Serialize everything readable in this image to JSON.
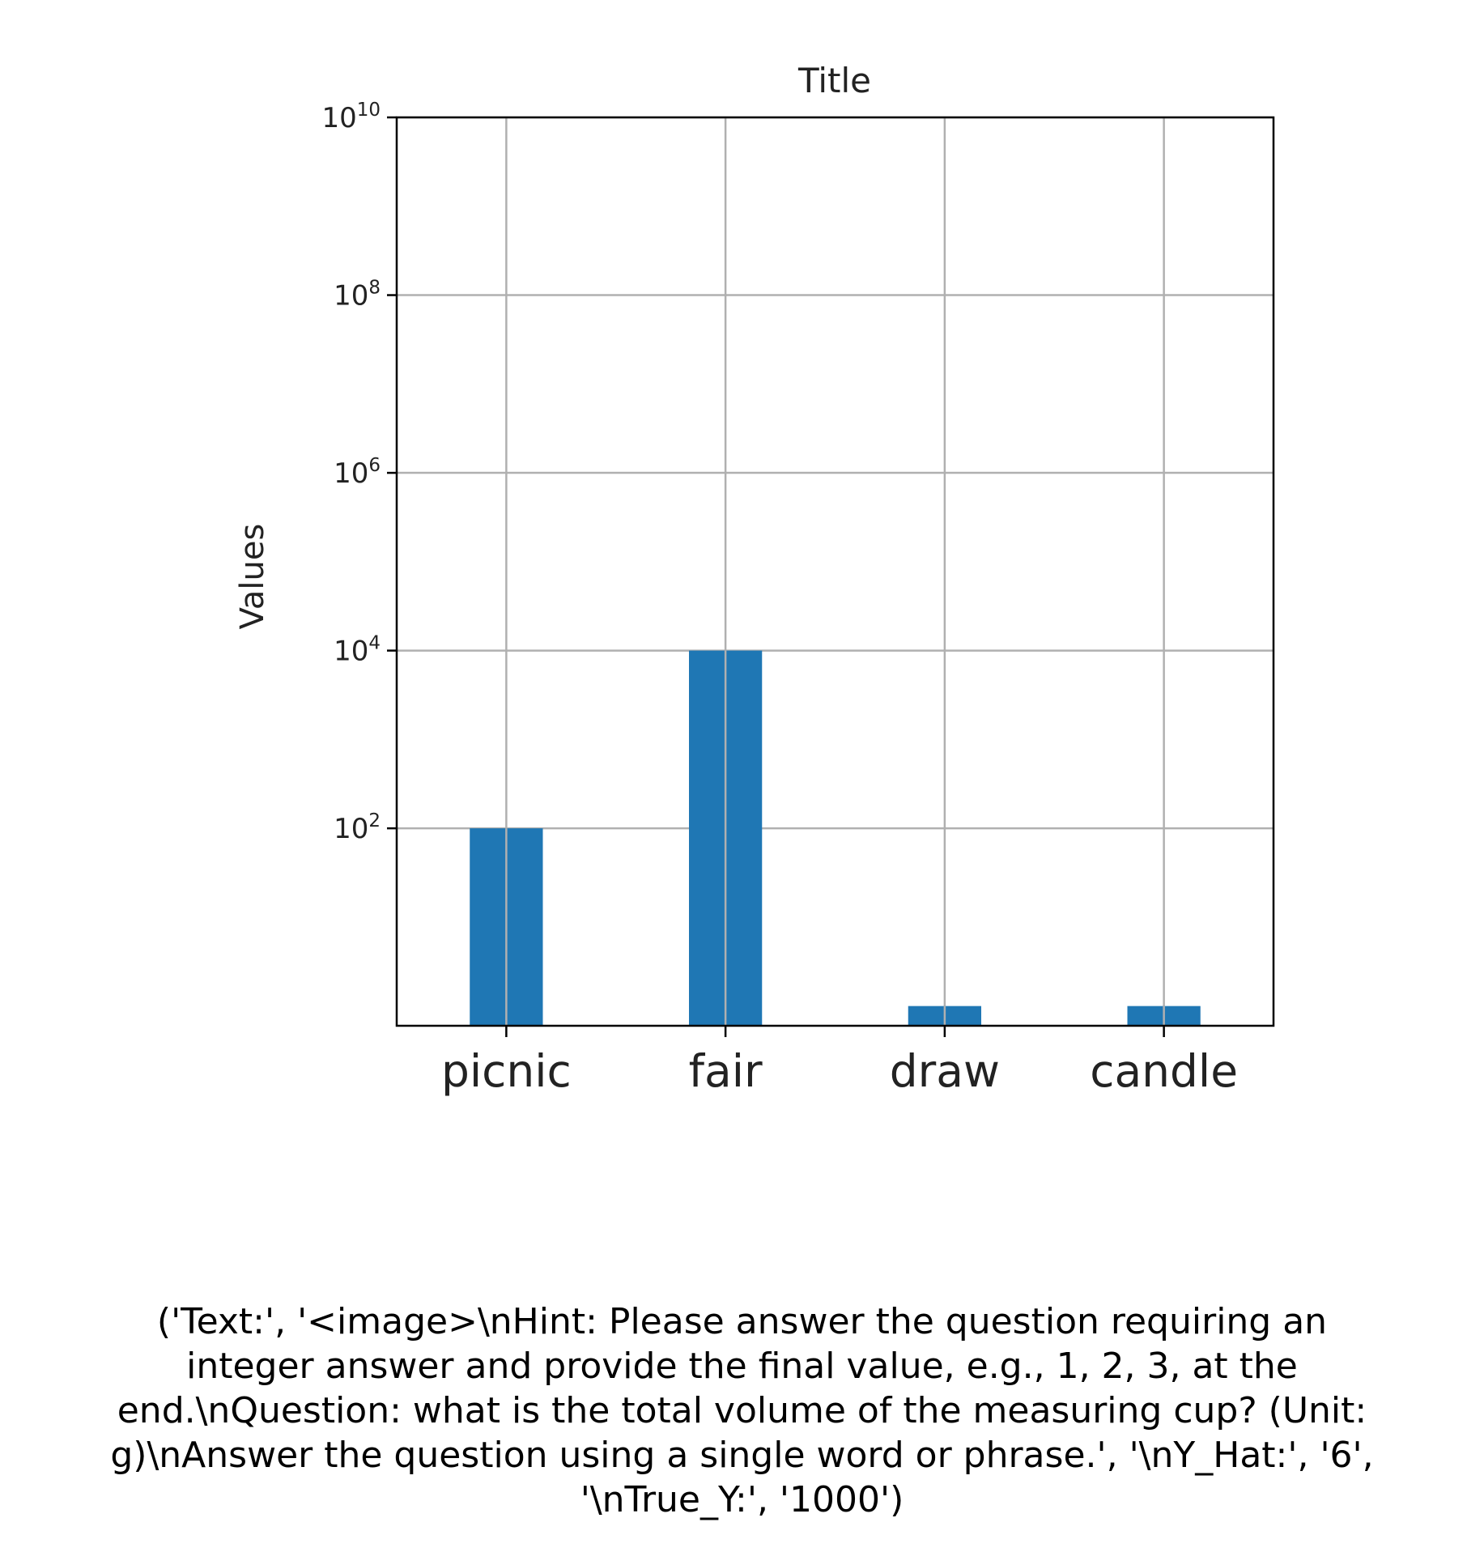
{
  "chart_data": {
    "type": "bar",
    "title": "Title",
    "ylabel": "Values",
    "xlabel": "",
    "categories": [
      "picnic",
      "fair",
      "draw",
      "candle"
    ],
    "values": [
      100,
      10000,
      1,
      1
    ],
    "yscale": "log",
    "ylim": [
      0.6,
      10000000000
    ],
    "yticks": [
      {
        "value": 100,
        "base": "10",
        "exp": "2"
      },
      {
        "value": 10000,
        "base": "10",
        "exp": "4"
      },
      {
        "value": 1000000,
        "base": "10",
        "exp": "6"
      },
      {
        "value": 100000000,
        "base": "10",
        "exp": "8"
      },
      {
        "value": 10000000000,
        "base": "10",
        "exp": "10"
      }
    ],
    "grid": true,
    "bar_color": "#1f77b4",
    "grid_color": "#b0b0b0"
  },
  "caption": "('Text:', '<image>\\nHint: Please answer the question requiring an\ninteger answer and provide the final value, e.g., 1, 2, 3, at the\nend.\\nQuestion: what is the total volume of the measuring cup? (Unit:\ng)\\nAnswer the question using a single word or phrase.', '\\nY_Hat:', '6',\n'\\nTrue_Y:', '1000')"
}
